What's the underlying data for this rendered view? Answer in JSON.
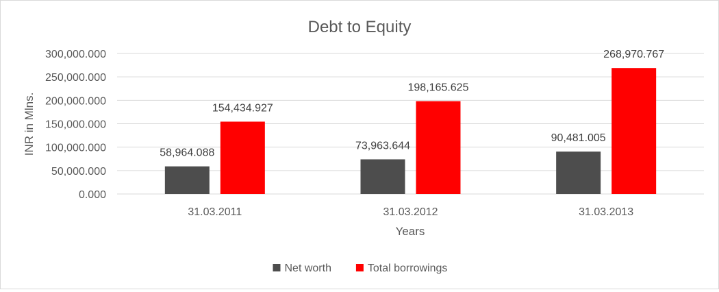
{
  "chart_data": {
    "type": "bar",
    "title": "Debt to Equity",
    "xlabel": "Years",
    "ylabel": "INR in Mlns.",
    "categories": [
      "31.03.2011",
      "31.03.2012",
      "31.03.2013"
    ],
    "series": [
      {
        "name": "Net worth",
        "color": "#4d4d4d",
        "values": [
          58964.088,
          73963.644,
          90481.005
        ],
        "labels": [
          "58,964.088",
          "73,963.644",
          "90,481.005"
        ]
      },
      {
        "name": "Total borrowings",
        "color": "#ff0000",
        "values": [
          154434.927,
          198165.625,
          268970.767
        ],
        "labels": [
          "154,434.927",
          "198,165.625",
          "268,970.767"
        ]
      }
    ],
    "ylim": [
      0,
      300000
    ],
    "yticks": [
      0,
      50000,
      100000,
      150000,
      200000,
      250000,
      300000
    ],
    "ytick_labels": [
      "0.000",
      "50,000.000",
      "100,000.000",
      "150,000.000",
      "200,000.000",
      "250,000.000",
      "300,000.000"
    ],
    "grid": true,
    "legend": "bottom-center"
  }
}
